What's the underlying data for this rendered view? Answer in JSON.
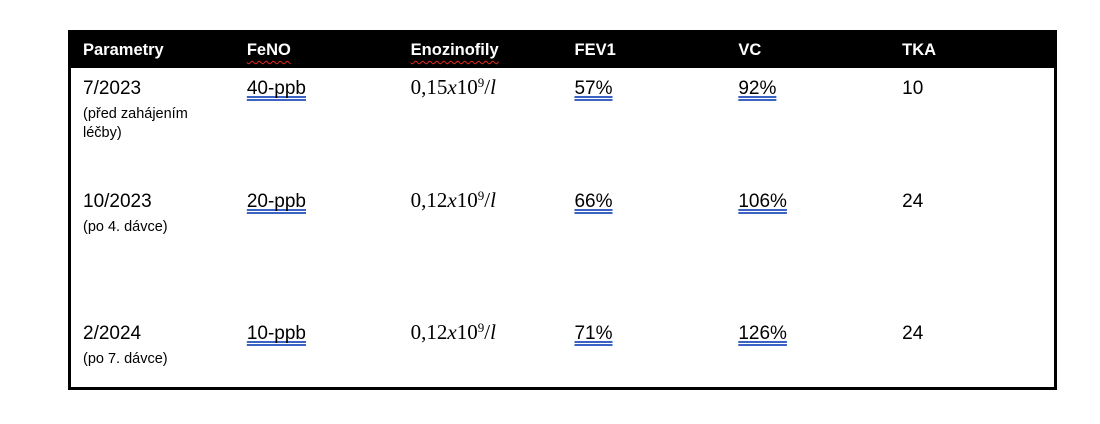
{
  "page": {
    "background": "#ffffff"
  },
  "table": {
    "colors": {
      "header_bg": "#000000",
      "header_text": "#ffffff",
      "border": "#000000",
      "body_text": "#000000",
      "grammar_underline_blue": "#3B63C4",
      "spellcheck_wavy_red": "#E8291D"
    },
    "columns": [
      {
        "label": "Parametry",
        "spell_flag": false
      },
      {
        "label": "FeNO",
        "spell_flag": true
      },
      {
        "label": "Enozinofily",
        "spell_flag": true
      },
      {
        "label": "FEV1",
        "spell_flag": false
      },
      {
        "label": "VC",
        "spell_flag": false
      },
      {
        "label": "TKA",
        "spell_flag": false
      }
    ],
    "rows": [
      {
        "period": "7/2023",
        "period_note": "(před zahájením léčby)",
        "feno": "40-ppb",
        "eosinophils": {
          "coef": "0,15",
          "times_var": "x",
          "base": "10",
          "exponent": "9",
          "per": "/",
          "unit_var": "l"
        },
        "fev1": "57%",
        "vc": "92%",
        "tka": "10"
      },
      {
        "period": "10/2023",
        "period_note": "(po 4. dávce)",
        "feno": "20-ppb",
        "eosinophils": {
          "coef": "0,12",
          "times_var": "x",
          "base": "10",
          "exponent": "9",
          "per": "/",
          "unit_var": "l"
        },
        "fev1": "66%",
        "vc": "106%",
        "tka": "24"
      },
      {
        "period": "2/2024",
        "period_note": "(po 7. dávce)",
        "feno": "10-ppb",
        "eosinophils": {
          "coef": "0,12",
          "times_var": "x",
          "base": "10",
          "exponent": "9",
          "per": "/",
          "unit_var": "l"
        },
        "fev1": "71%",
        "vc": "126%",
        "tka": "24"
      }
    ]
  }
}
